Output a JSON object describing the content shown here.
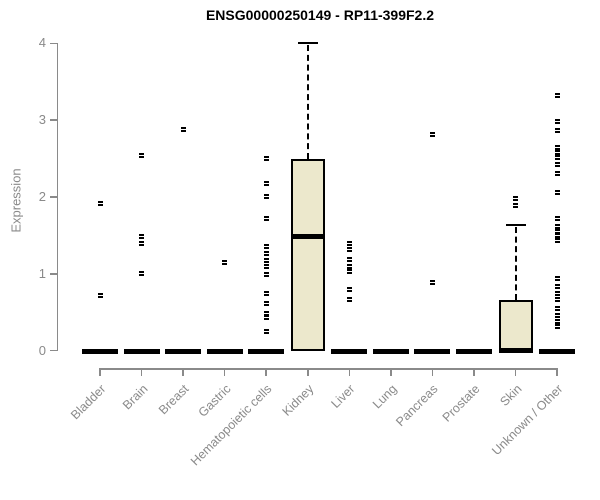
{
  "colors": {
    "background": "#ffffff",
    "axis": "#8a8a8a",
    "box_fill": "#ece8cc",
    "box_border": "#000000",
    "point": "#000000",
    "title": "#000000"
  },
  "chart_data": {
    "type": "boxplot",
    "title": "ENSG00000250149 - RP11-399F2.2",
    "xlabel": "",
    "ylabel": "Expression",
    "ylim": [
      0,
      4
    ],
    "yticks": [
      0,
      1,
      2,
      3,
      4
    ],
    "grid": false,
    "legend": false,
    "categories": [
      "Bladder",
      "Brain",
      "Breast",
      "Gastric",
      "Hematopoietic cells",
      "Kidney",
      "Liver",
      "Lung",
      "Pancreas",
      "Prostate",
      "Skin",
      "Unknown / Other"
    ],
    "series": [
      {
        "label": "Bladder",
        "q1": 0,
        "median": 0,
        "q3": 0,
        "whisker_high": null,
        "points": [
          1.92,
          0.72
        ]
      },
      {
        "label": "Brain",
        "q1": 0,
        "median": 0,
        "q3": 0,
        "whisker_high": null,
        "points": [
          2.54,
          1.48,
          1.4,
          1.0
        ]
      },
      {
        "label": "Breast",
        "q1": 0,
        "median": 0,
        "q3": 0,
        "whisker_high": null,
        "points": [
          2.88
        ]
      },
      {
        "label": "Gastric",
        "q1": 0,
        "median": 0,
        "q3": 0,
        "whisker_high": null,
        "points": [
          1.15
        ]
      },
      {
        "label": "Hematopoietic cells",
        "q1": 0,
        "median": 0,
        "q3": 0,
        "whisker_high": null,
        "points": [
          2.5,
          2.17,
          2.01,
          1.72,
          1.36,
          1.27,
          1.18,
          1.1,
          0.99,
          0.75,
          0.62,
          0.49,
          0.43,
          0.25
        ]
      },
      {
        "label": "Kidney",
        "q1": 0,
        "median": 1.48,
        "q3": 2.5,
        "whisker_high": 4.0,
        "points": []
      },
      {
        "label": "Liver",
        "q1": 0,
        "median": 0,
        "q3": 0,
        "whisker_high": null,
        "points": [
          1.4,
          1.32,
          1.19,
          1.09,
          1.03,
          0.79,
          0.66
        ]
      },
      {
        "label": "Lung",
        "q1": 0,
        "median": 0,
        "q3": 0,
        "whisker_high": null,
        "points": []
      },
      {
        "label": "Pancreas",
        "q1": 0,
        "median": 0,
        "q3": 0,
        "whisker_high": null,
        "points": [
          2.81,
          0.89
        ]
      },
      {
        "label": "Prostate",
        "q1": 0,
        "median": 0,
        "q3": 0,
        "whisker_high": null,
        "points": []
      },
      {
        "label": "Skin",
        "q1": 0,
        "median": 0,
        "q3": 0.66,
        "whisker_high": 1.64,
        "points": [
          1.98,
          1.89
        ]
      },
      {
        "label": "Unknown / Other",
        "q1": 0,
        "median": 0,
        "q3": 0,
        "whisker_high": null,
        "points": [
          3.32,
          2.98,
          2.87,
          2.65,
          2.58,
          2.52,
          2.42,
          2.31,
          2.06,
          1.72,
          1.62,
          1.55,
          1.5,
          1.43,
          0.94,
          0.83,
          0.75,
          0.66,
          0.55,
          0.46,
          0.38,
          0.31
        ]
      }
    ]
  }
}
